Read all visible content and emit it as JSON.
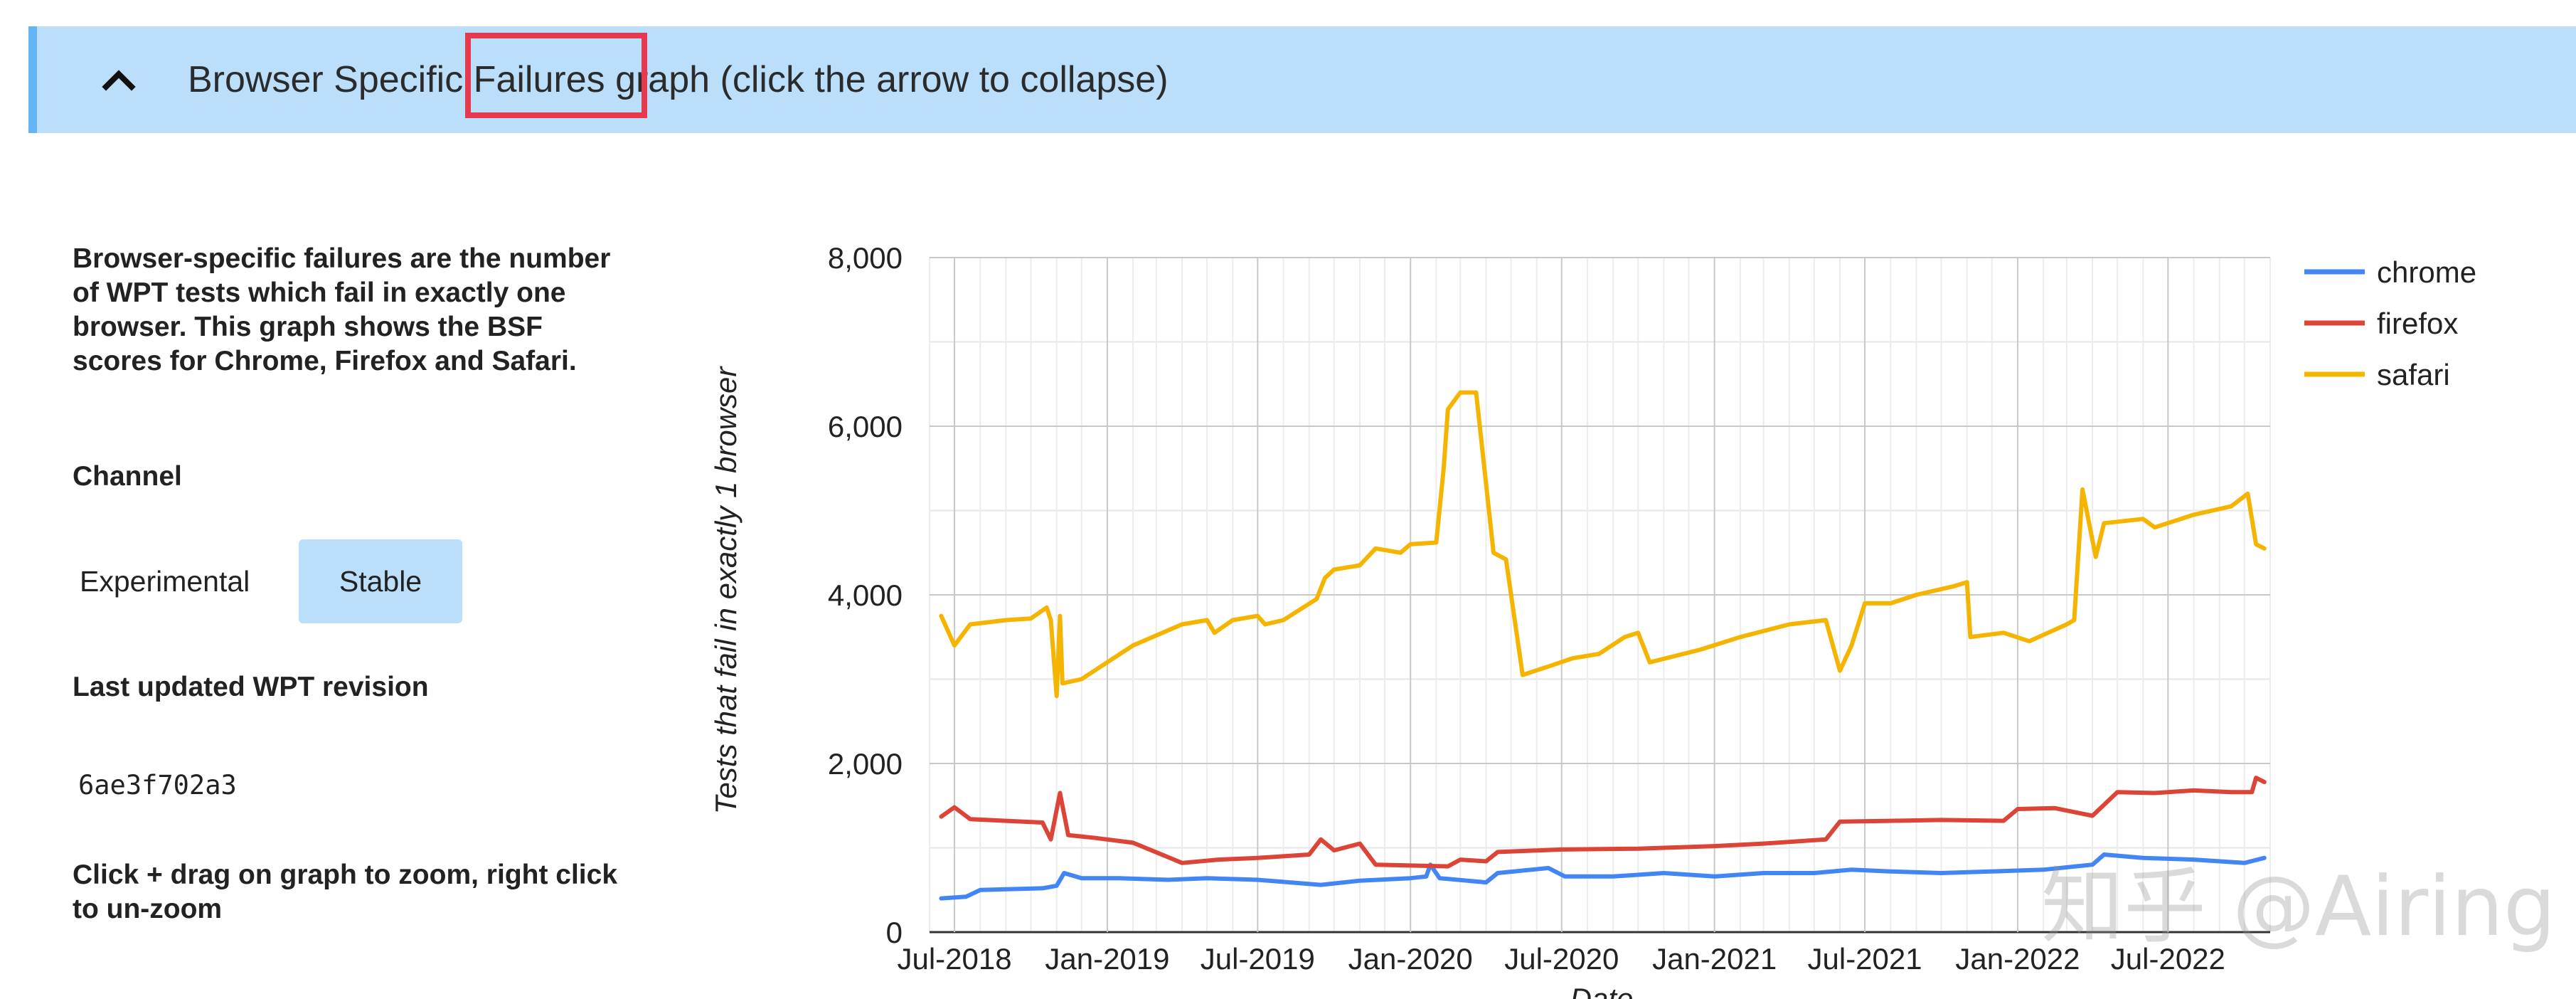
{
  "header": {
    "title": "Browser Specific Failures graph (click the arrow to collapse)",
    "collapse_icon": "chevron-up-icon",
    "accent_color": "#64b5f6",
    "background_color": "#bbdefb",
    "highlight_color": "#e53950"
  },
  "sidebar": {
    "description": "Browser-specific failures are the number of WPT tests which fail in exactly one browser. This graph shows the BSF scores for Chrome, Firefox and Safari.",
    "channel_label": "Channel",
    "channels": [
      "Experimental",
      "Stable"
    ],
    "selected_channel": "Stable",
    "revision_label": "Last updated WPT revision",
    "revision_value": "6ae3f702a3",
    "hint": "Click + drag on graph to zoom, right click to un-zoom"
  },
  "watermark": "知乎 @Airing",
  "chart_data": {
    "type": "line",
    "title": "",
    "xlabel": "Date",
    "ylabel": "Tests that fail in exactly 1 browser",
    "ylim": [
      0,
      8000
    ],
    "yticks": [
      "0",
      "2,000",
      "4,000",
      "6,000",
      "8,000"
    ],
    "xticks": [
      "Jul-2018",
      "Jan-2019",
      "Jul-2019",
      "Jan-2020",
      "Jul-2020",
      "Jan-2021",
      "Jul-2021",
      "Jan-2022",
      "Jul-2022"
    ],
    "grid": true,
    "legend_position": "right",
    "series": [
      {
        "name": "chrome",
        "color": "#4285f4",
        "points": [
          [
            "2018-06-15",
            400
          ],
          [
            "2018-07-15",
            420
          ],
          [
            "2018-08-01",
            500
          ],
          [
            "2018-10-15",
            520
          ],
          [
            "2018-11-01",
            550
          ],
          [
            "2018-11-10",
            700
          ],
          [
            "2018-12-01",
            640
          ],
          [
            "2019-01-15",
            640
          ],
          [
            "2019-03-15",
            620
          ],
          [
            "2019-05-01",
            640
          ],
          [
            "2019-07-01",
            620
          ],
          [
            "2019-09-15",
            560
          ],
          [
            "2019-11-01",
            610
          ],
          [
            "2020-01-01",
            640
          ],
          [
            "2020-01-20",
            660
          ],
          [
            "2020-01-25",
            800
          ],
          [
            "2020-02-05",
            640
          ],
          [
            "2020-04-01",
            590
          ],
          [
            "2020-04-15",
            700
          ],
          [
            "2020-06-15",
            760
          ],
          [
            "2020-07-05",
            660
          ],
          [
            "2020-09-01",
            660
          ],
          [
            "2020-11-01",
            700
          ],
          [
            "2021-01-01",
            660
          ],
          [
            "2021-03-01",
            700
          ],
          [
            "2021-05-01",
            700
          ],
          [
            "2021-06-15",
            740
          ],
          [
            "2021-08-01",
            720
          ],
          [
            "2021-10-01",
            700
          ],
          [
            "2021-12-01",
            720
          ],
          [
            "2022-02-01",
            740
          ],
          [
            "2022-04-01",
            800
          ],
          [
            "2022-04-15",
            920
          ],
          [
            "2022-06-01",
            880
          ],
          [
            "2022-08-01",
            860
          ],
          [
            "2022-10-01",
            820
          ],
          [
            "2022-10-25",
            880
          ]
        ]
      },
      {
        "name": "firefox",
        "color": "#db4437",
        "points": [
          [
            "2018-06-15",
            1370
          ],
          [
            "2018-07-01",
            1480
          ],
          [
            "2018-07-20",
            1340
          ],
          [
            "2018-09-01",
            1320
          ],
          [
            "2018-10-15",
            1300
          ],
          [
            "2018-10-25",
            1100
          ],
          [
            "2018-11-05",
            1650
          ],
          [
            "2018-11-15",
            1150
          ],
          [
            "2018-12-15",
            1120
          ],
          [
            "2019-02-01",
            1060
          ],
          [
            "2019-04-01",
            820
          ],
          [
            "2019-05-15",
            860
          ],
          [
            "2019-07-01",
            880
          ],
          [
            "2019-09-01",
            920
          ],
          [
            "2019-09-15",
            1100
          ],
          [
            "2019-10-01",
            970
          ],
          [
            "2019-11-01",
            1050
          ],
          [
            "2019-11-20",
            800
          ],
          [
            "2020-01-01",
            790
          ],
          [
            "2020-02-15",
            780
          ],
          [
            "2020-03-01",
            860
          ],
          [
            "2020-04-01",
            840
          ],
          [
            "2020-04-15",
            950
          ],
          [
            "2020-07-01",
            980
          ],
          [
            "2020-10-01",
            990
          ],
          [
            "2021-01-01",
            1020
          ],
          [
            "2021-03-01",
            1050
          ],
          [
            "2021-05-15",
            1100
          ],
          [
            "2021-06-01",
            1310
          ],
          [
            "2021-08-01",
            1320
          ],
          [
            "2021-10-01",
            1330
          ],
          [
            "2021-12-15",
            1320
          ],
          [
            "2022-01-01",
            1460
          ],
          [
            "2022-02-15",
            1470
          ],
          [
            "2022-04-01",
            1380
          ],
          [
            "2022-05-01",
            1660
          ],
          [
            "2022-06-15",
            1650
          ],
          [
            "2022-08-01",
            1680
          ],
          [
            "2022-09-15",
            1660
          ],
          [
            "2022-10-10",
            1660
          ],
          [
            "2022-10-15",
            1830
          ],
          [
            "2022-10-25",
            1780
          ]
        ]
      },
      {
        "name": "safari",
        "color": "#f4b400",
        "points": [
          [
            "2018-06-15",
            3750
          ],
          [
            "2018-07-01",
            3400
          ],
          [
            "2018-07-20",
            3650
          ],
          [
            "2018-09-01",
            3700
          ],
          [
            "2018-10-01",
            3720
          ],
          [
            "2018-10-20",
            3850
          ],
          [
            "2018-10-25",
            3700
          ],
          [
            "2018-11-01",
            2800
          ],
          [
            "2018-11-05",
            3750
          ],
          [
            "2018-11-08",
            2950
          ],
          [
            "2018-12-01",
            3000
          ],
          [
            "2019-01-01",
            3200
          ],
          [
            "2019-02-01",
            3400
          ],
          [
            "2019-04-01",
            3650
          ],
          [
            "2019-05-01",
            3700
          ],
          [
            "2019-05-10",
            3550
          ],
          [
            "2019-06-01",
            3700
          ],
          [
            "2019-07-01",
            3750
          ],
          [
            "2019-07-10",
            3650
          ],
          [
            "2019-08-01",
            3700
          ],
          [
            "2019-09-10",
            3950
          ],
          [
            "2019-09-20",
            4200
          ],
          [
            "2019-10-01",
            4300
          ],
          [
            "2019-11-01",
            4350
          ],
          [
            "2019-11-20",
            4550
          ],
          [
            "2019-12-20",
            4500
          ],
          [
            "2020-01-01",
            4600
          ],
          [
            "2020-02-01",
            4620
          ],
          [
            "2020-02-10",
            5500
          ],
          [
            "2020-02-15",
            6200
          ],
          [
            "2020-03-01",
            6400
          ],
          [
            "2020-03-20",
            6400
          ],
          [
            "2020-04-10",
            4500
          ],
          [
            "2020-04-25",
            4420
          ],
          [
            "2020-05-15",
            3050
          ],
          [
            "2020-06-15",
            3150
          ],
          [
            "2020-07-15",
            3250
          ],
          [
            "2020-08-15",
            3300
          ],
          [
            "2020-09-15",
            3500
          ],
          [
            "2020-10-01",
            3550
          ],
          [
            "2020-10-15",
            3200
          ],
          [
            "2020-12-15",
            3350
          ],
          [
            "2021-02-01",
            3500
          ],
          [
            "2021-04-01",
            3650
          ],
          [
            "2021-05-15",
            3700
          ],
          [
            "2021-06-01",
            3100
          ],
          [
            "2021-06-15",
            3400
          ],
          [
            "2021-07-01",
            3900
          ],
          [
            "2021-08-01",
            3900
          ],
          [
            "2021-09-01",
            4000
          ],
          [
            "2021-10-15",
            4100
          ],
          [
            "2021-11-01",
            4150
          ],
          [
            "2021-11-05",
            3500
          ],
          [
            "2021-12-15",
            3550
          ],
          [
            "2022-01-15",
            3450
          ],
          [
            "2022-03-01",
            3650
          ],
          [
            "2022-03-10",
            3700
          ],
          [
            "2022-03-20",
            5250
          ],
          [
            "2022-04-05",
            4450
          ],
          [
            "2022-04-15",
            4850
          ],
          [
            "2022-06-01",
            4900
          ],
          [
            "2022-06-15",
            4800
          ],
          [
            "2022-08-01",
            4950
          ],
          [
            "2022-09-15",
            5050
          ],
          [
            "2022-10-05",
            5200
          ],
          [
            "2022-10-15",
            4600
          ],
          [
            "2022-10-25",
            4550
          ]
        ]
      }
    ]
  }
}
